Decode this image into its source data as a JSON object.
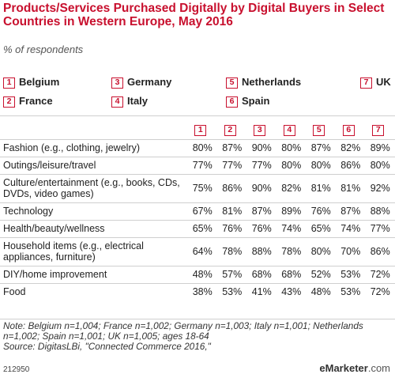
{
  "title": "Products/Services Purchased Digitally by Digital Buyers in Select Countries in Western Europe, May 2016",
  "subtitle": "% of respondents",
  "legend": [
    {
      "num": "1",
      "label": "Belgium"
    },
    {
      "num": "2",
      "label": "France"
    },
    {
      "num": "3",
      "label": "Germany"
    },
    {
      "num": "4",
      "label": "Italy"
    },
    {
      "num": "5",
      "label": "Netherlands"
    },
    {
      "num": "6",
      "label": "Spain"
    },
    {
      "num": "7",
      "label": "UK"
    }
  ],
  "chart_data": {
    "type": "table",
    "title": "Products/Services Purchased Digitally by Digital Buyers in Select Countries in Western Europe, May 2016",
    "columns": [
      "1",
      "2",
      "3",
      "4",
      "5",
      "6",
      "7"
    ],
    "rows": [
      {
        "label": "Fashion (e.g., clothing, jewelry)",
        "values": [
          "80%",
          "87%",
          "90%",
          "80%",
          "87%",
          "82%",
          "89%"
        ]
      },
      {
        "label": "Outings/leisure/travel",
        "values": [
          "77%",
          "77%",
          "77%",
          "80%",
          "80%",
          "86%",
          "80%"
        ]
      },
      {
        "label": "Culture/entertainment (e.g., books, CDs, DVDs, video games)",
        "values": [
          "75%",
          "86%",
          "90%",
          "82%",
          "81%",
          "81%",
          "92%"
        ]
      },
      {
        "label": "Technology",
        "values": [
          "67%",
          "81%",
          "87%",
          "89%",
          "76%",
          "87%",
          "88%"
        ]
      },
      {
        "label": "Health/beauty/wellness",
        "values": [
          "65%",
          "76%",
          "76%",
          "74%",
          "65%",
          "74%",
          "77%"
        ]
      },
      {
        "label": "Household items (e.g., electrical appliances, furniture)",
        "values": [
          "64%",
          "78%",
          "88%",
          "78%",
          "80%",
          "70%",
          "86%"
        ]
      },
      {
        "label": "DIY/home improvement",
        "values": [
          "48%",
          "57%",
          "68%",
          "68%",
          "52%",
          "53%",
          "72%"
        ]
      },
      {
        "label": "Food",
        "values": [
          "38%",
          "53%",
          "41%",
          "43%",
          "48%",
          "53%",
          "72%"
        ]
      }
    ]
  },
  "note": "Note: Belgium n=1,004; France n=1,002; Germany n=1,003; Italy n=1,001; Netherlands n=1,002; Spain n=1,001; UK n=1,005; ages 18-64",
  "source": "Source: DigitasLBi, \"Connected Commerce 2016,\"",
  "chart_id": "212950",
  "brand": {
    "prefix": "e",
    "name": "Marketer",
    "suffix": ".com"
  },
  "colors": {
    "accent": "#c8102e",
    "rule": "#cfcfcf"
  }
}
